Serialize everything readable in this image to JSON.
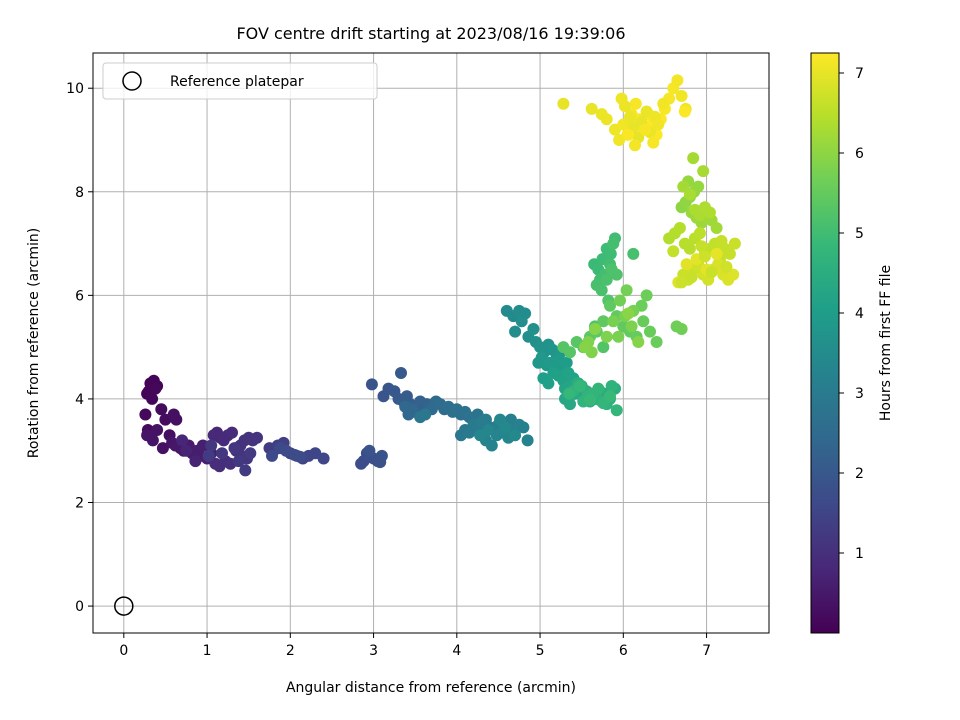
{
  "chart_data": {
    "type": "scatter",
    "title": "FOV centre drift starting at 2023/08/16 19:39:06",
    "xlabel": "Angular distance from reference (arcmin)",
    "ylabel": "Rotation from reference (arcmin)",
    "xlim": [
      -0.37,
      7.75
    ],
    "ylim": [
      -0.52,
      10.68
    ],
    "xticks": [
      0,
      1,
      2,
      3,
      4,
      5,
      6,
      7
    ],
    "yticks": [
      0,
      2,
      4,
      6,
      8,
      10
    ],
    "grid": true,
    "legend": {
      "position": "top-left",
      "entries": [
        "Reference platepar"
      ]
    },
    "reference_point": {
      "x": 0,
      "y": 0
    },
    "colorbar": {
      "label": "Hours from first FF file",
      "range": [
        0,
        7.25
      ],
      "ticks": [
        1,
        2,
        3,
        4,
        5,
        6,
        7
      ],
      "colormap": "viridis",
      "colors": [
        "#440154",
        "#482878",
        "#3e4989",
        "#31688e",
        "#26828e",
        "#1f9e89",
        "#35b779",
        "#6ece58",
        "#b5de2b",
        "#fde725"
      ]
    },
    "series": [
      {
        "x": [
          0.28,
          0.32,
          0.36,
          0.4,
          0.3,
          0.34,
          0.38,
          0.26,
          0.29,
          0.33,
          0.45,
          0.5,
          0.55,
          0.6,
          0.63,
          0.47,
          0.4,
          0.28,
          0.35,
          0.58,
          0.62,
          0.68,
          0.72,
          0.78,
          0.82,
          0.88,
          0.92,
          0.95,
          1.0,
          1.05,
          0.86,
          0.75,
          0.7
        ],
        "y": [
          4.1,
          4.3,
          4.35,
          4.25,
          4.15,
          4.0,
          4.2,
          3.7,
          3.4,
          3.3,
          3.8,
          3.6,
          3.3,
          3.7,
          3.6,
          3.05,
          3.4,
          3.3,
          3.2,
          3.15,
          3.1,
          3.05,
          3.0,
          3.1,
          2.95,
          3.0,
          2.9,
          3.1,
          2.85,
          2.95,
          2.8,
          3.0,
          3.2
        ],
        "t": [
          0.05,
          0.05,
          0.06,
          0.07,
          0.08,
          0.1,
          0.12,
          0.15,
          0.18,
          0.2,
          0.22,
          0.25,
          0.28,
          0.3,
          0.32,
          0.34,
          0.36,
          0.38,
          0.4,
          0.42,
          0.45,
          0.48,
          0.5,
          0.52,
          0.55,
          0.58,
          0.6,
          0.62,
          0.65,
          0.68,
          0.7,
          0.72,
          0.75
        ]
      },
      {
        "x": [
          1.08,
          1.12,
          1.16,
          1.2,
          1.25,
          1.3,
          1.1,
          1.15,
          1.22,
          1.28,
          1.35,
          1.4,
          1.45,
          1.5,
          1.55,
          1.6,
          1.42,
          1.48,
          1.33,
          1.18,
          1.05,
          1.38,
          1.52,
          1.46,
          1.02
        ],
        "y": [
          3.3,
          3.35,
          3.25,
          3.2,
          3.3,
          3.35,
          2.75,
          2.7,
          2.8,
          2.75,
          3.0,
          3.1,
          3.2,
          3.25,
          3.2,
          3.25,
          2.9,
          2.85,
          3.05,
          2.95,
          3.1,
          2.8,
          2.95,
          2.62,
          2.9
        ],
        "t": [
          0.8,
          0.82,
          0.84,
          0.86,
          0.88,
          0.9,
          0.92,
          0.94,
          0.96,
          0.98,
          1.0,
          1.02,
          1.04,
          1.06,
          1.08,
          1.1,
          1.12,
          1.14,
          1.16,
          1.18,
          1.2,
          1.22,
          1.24,
          1.26,
          1.28
        ]
      },
      {
        "x": [
          1.75,
          1.8,
          1.85,
          1.92,
          2.0,
          2.08,
          2.15,
          2.22,
          2.3,
          2.4,
          1.78,
          1.88,
          1.95,
          2.05,
          2.12,
          2.85,
          2.88,
          2.92,
          2.96,
          3.0,
          3.05,
          3.08,
          3.1,
          2.95
        ],
        "y": [
          3.05,
          3.0,
          3.1,
          3.15,
          2.95,
          2.9,
          2.85,
          2.9,
          2.95,
          2.85,
          2.9,
          3.05,
          3.0,
          2.92,
          2.88,
          2.75,
          2.8,
          2.95,
          2.9,
          2.85,
          2.8,
          2.78,
          2.9,
          3.0
        ],
        "t": [
          1.3,
          1.33,
          1.36,
          1.39,
          1.42,
          1.45,
          1.48,
          1.51,
          1.54,
          1.57,
          1.6,
          1.62,
          1.64,
          1.66,
          1.68,
          1.7,
          1.72,
          1.74,
          1.76,
          1.78,
          1.8,
          1.82,
          1.84,
          1.86
        ]
      },
      {
        "x": [
          2.98,
          3.12,
          3.18,
          3.25,
          3.33,
          3.3,
          3.36,
          3.4,
          3.44,
          3.48,
          3.52,
          3.56,
          3.6,
          3.64,
          3.68,
          3.5,
          3.46,
          3.42,
          3.38,
          3.7,
          3.75,
          3.8,
          3.85,
          3.9,
          3.95,
          4.0,
          4.05,
          4.1,
          4.15,
          4.2,
          4.25,
          4.3,
          3.56,
          3.62
        ],
        "y": [
          4.28,
          4.05,
          4.2,
          4.15,
          4.5,
          4.0,
          3.95,
          4.05,
          3.9,
          3.85,
          3.8,
          3.95,
          3.75,
          3.9,
          3.85,
          3.75,
          3.8,
          3.7,
          3.85,
          3.8,
          3.95,
          3.9,
          3.8,
          3.85,
          3.75,
          3.8,
          3.7,
          3.75,
          3.65,
          3.6,
          3.7,
          3.55,
          3.65,
          3.7
        ],
        "t": [
          1.9,
          1.93,
          1.96,
          1.99,
          2.02,
          2.05,
          2.08,
          2.11,
          2.14,
          2.17,
          2.2,
          2.23,
          2.26,
          2.29,
          2.32,
          2.35,
          2.38,
          2.41,
          2.44,
          2.47,
          2.5,
          2.53,
          2.56,
          2.59,
          2.62,
          2.65,
          2.68,
          2.71,
          2.74,
          2.77,
          2.8,
          2.83,
          2.86,
          2.89
        ]
      },
      {
        "x": [
          4.05,
          4.1,
          4.15,
          4.2,
          4.25,
          4.3,
          4.35,
          4.4,
          4.45,
          4.5,
          4.55,
          4.6,
          4.65,
          4.7,
          4.75,
          4.8,
          4.85,
          4.35,
          4.42,
          4.48,
          4.56,
          4.62,
          4.38,
          4.28,
          4.52,
          4.7,
          4.58
        ],
        "y": [
          3.3,
          3.4,
          3.35,
          3.5,
          3.45,
          3.55,
          3.6,
          3.45,
          3.4,
          3.5,
          3.55,
          3.35,
          3.6,
          3.4,
          3.5,
          3.45,
          3.2,
          3.2,
          3.1,
          3.3,
          3.35,
          3.25,
          3.4,
          3.3,
          3.6,
          3.3,
          3.45
        ],
        "t": [
          2.9,
          2.92,
          2.94,
          2.96,
          2.98,
          3.0,
          3.02,
          3.04,
          3.06,
          3.08,
          3.1,
          3.12,
          3.14,
          3.16,
          3.18,
          3.2,
          3.22,
          3.24,
          3.26,
          3.28,
          3.3,
          3.32,
          3.34,
          3.36,
          3.38,
          3.4,
          3.42
        ]
      },
      {
        "x": [
          4.6,
          4.68,
          4.75,
          4.82,
          4.7,
          4.78,
          4.86,
          4.92,
          4.95,
          5.0,
          5.05,
          5.1,
          5.15,
          5.2,
          5.25,
          4.98,
          5.02,
          5.08,
          5.12,
          5.18,
          5.22,
          5.28,
          5.32,
          5.04,
          5.1,
          5.16,
          5.22,
          5.28,
          5.34,
          5.4,
          5.46,
          5.3,
          5.36,
          5.42
        ],
        "y": [
          5.7,
          5.6,
          5.7,
          5.65,
          5.3,
          5.5,
          5.2,
          5.35,
          5.1,
          5.0,
          4.9,
          5.05,
          4.95,
          4.85,
          4.9,
          4.7,
          4.8,
          4.65,
          4.7,
          4.6,
          4.75,
          4.6,
          4.7,
          4.4,
          4.3,
          4.5,
          4.45,
          4.35,
          4.5,
          4.4,
          4.3,
          4.2,
          4.25,
          4.1
        ],
        "t": [
          3.45,
          3.48,
          3.5,
          3.52,
          3.55,
          3.58,
          3.6,
          3.62,
          3.65,
          3.68,
          3.7,
          3.72,
          3.75,
          3.78,
          3.8,
          3.82,
          3.85,
          3.88,
          3.9,
          3.92,
          3.95,
          3.98,
          4.0,
          4.02,
          4.05,
          4.08,
          4.1,
          4.12,
          4.15,
          4.18,
          4.2,
          4.22,
          4.25,
          4.28
        ]
      },
      {
        "x": [
          5.3,
          5.36,
          5.42,
          5.48,
          5.54,
          5.6,
          5.66,
          5.72,
          5.78,
          5.84,
          5.9,
          5.45,
          5.5,
          5.56,
          5.62,
          5.68,
          5.74,
          5.8,
          5.86,
          5.4,
          5.52,
          5.58,
          5.64,
          5.7,
          5.76,
          5.92,
          5.35,
          5.48,
          5.6,
          5.84
        ],
        "y": [
          4.0,
          3.9,
          4.1,
          4.2,
          4.05,
          3.95,
          4.0,
          4.15,
          4.1,
          4.0,
          4.2,
          4.3,
          4.25,
          4.15,
          4.1,
          4.0,
          3.95,
          3.9,
          4.25,
          4.15,
          3.95,
          4.05,
          4.1,
          4.2,
          3.92,
          3.78,
          4.1,
          4.25,
          3.98,
          4.05
        ],
        "t": [
          4.3,
          4.32,
          4.34,
          4.36,
          4.38,
          4.4,
          4.42,
          4.44,
          4.46,
          4.48,
          4.5,
          4.52,
          4.54,
          4.56,
          4.58,
          4.6,
          4.62,
          4.64,
          4.66,
          4.68,
          4.7,
          4.72,
          4.74,
          4.76,
          4.78,
          4.8,
          4.82,
          4.84,
          4.86,
          4.88
        ]
      },
      {
        "x": [
          5.65,
          5.7,
          5.75,
          5.8,
          5.85,
          5.9,
          5.72,
          5.78,
          5.84,
          5.88,
          6.12,
          5.68,
          5.74,
          5.8,
          5.86,
          5.92,
          5.66,
          5.82,
          5.76
        ],
        "y": [
          6.6,
          6.5,
          6.7,
          6.9,
          6.8,
          7.1,
          6.3,
          6.4,
          6.6,
          7.0,
          6.8,
          6.2,
          6.1,
          6.3,
          6.5,
          6.4,
          5.4,
          5.9,
          5.0
        ],
        "t": [
          4.9,
          4.92,
          4.94,
          4.96,
          4.98,
          5.0,
          5.02,
          5.04,
          5.06,
          5.08,
          5.1,
          5.12,
          5.14,
          5.16,
          5.18,
          5.2,
          5.22,
          5.24,
          5.26
        ]
      },
      {
        "x": [
          5.28,
          5.36,
          5.44,
          5.52,
          5.6,
          5.68,
          5.76,
          5.84,
          5.92,
          6.0,
          6.08,
          6.16,
          6.24,
          6.32,
          6.4,
          6.22,
          6.28,
          6.64,
          6.7,
          5.96,
          6.04,
          6.12,
          5.88,
          5.94,
          6.02,
          6.1,
          5.8,
          5.62,
          5.58,
          6.18,
          5.54,
          5.66,
          6.06
        ],
        "y": [
          5.0,
          4.9,
          5.1,
          5.0,
          5.2,
          5.3,
          5.5,
          5.8,
          5.6,
          5.4,
          5.3,
          5.2,
          5.5,
          5.3,
          5.1,
          5.8,
          6.0,
          5.4,
          5.35,
          5.9,
          6.1,
          5.7,
          5.5,
          5.2,
          5.6,
          5.4,
          5.2,
          4.9,
          5.1,
          5.1,
          5.0,
          5.35,
          5.65
        ],
        "t": [
          5.3,
          5.32,
          5.34,
          5.36,
          5.38,
          5.4,
          5.42,
          5.44,
          5.46,
          5.48,
          5.5,
          5.52,
          5.54,
          5.56,
          5.58,
          5.6,
          5.62,
          5.64,
          5.66,
          5.68,
          5.7,
          5.72,
          5.74,
          5.76,
          5.78,
          5.8,
          5.82,
          5.84,
          5.86,
          5.88,
          5.9,
          5.92,
          5.94
        ]
      },
      {
        "x": [
          6.7,
          6.75,
          6.8,
          6.85,
          6.9,
          6.78,
          6.82,
          6.88,
          6.94,
          7.0,
          7.06,
          7.12,
          6.72,
          6.84,
          6.96,
          6.8,
          6.86,
          6.92,
          6.98,
          7.04
        ],
        "y": [
          7.7,
          7.8,
          7.9,
          8.0,
          8.1,
          8.2,
          7.6,
          7.5,
          7.4,
          7.5,
          7.45,
          7.3,
          8.1,
          8.65,
          8.4,
          7.95,
          7.65,
          7.55,
          7.7,
          7.6
        ],
        "t": [
          6.0,
          6.02,
          6.04,
          6.06,
          6.08,
          6.1,
          6.12,
          6.14,
          6.16,
          6.18,
          6.2,
          6.22,
          6.24,
          6.26,
          6.28,
          6.3,
          6.32,
          6.34,
          6.36,
          6.38
        ]
      },
      {
        "x": [
          6.55,
          6.62,
          6.68,
          6.74,
          6.8,
          6.86,
          6.92,
          6.98,
          7.04,
          7.1,
          7.16,
          7.22,
          7.28,
          7.34,
          6.72,
          6.78,
          6.84,
          6.9,
          6.96,
          7.02,
          7.08,
          7.14,
          7.2,
          7.26,
          7.32,
          6.66,
          6.76,
          6.88,
          7.0,
          7.12,
          6.6,
          6.94,
          7.18,
          6.82,
          7.06,
          6.7,
          6.98,
          7.24
        ],
        "y": [
          7.1,
          7.2,
          7.3,
          7.0,
          6.9,
          7.1,
          7.2,
          6.8,
          6.9,
          7.0,
          6.7,
          6.9,
          6.8,
          7.0,
          6.4,
          6.3,
          6.5,
          6.6,
          6.4,
          6.3,
          6.5,
          6.6,
          6.4,
          6.3,
          6.4,
          6.25,
          6.6,
          6.7,
          6.5,
          6.8,
          6.85,
          6.95,
          7.05,
          6.35,
          6.45,
          6.25,
          6.75,
          6.55
        ],
        "t": [
          6.4,
          6.42,
          6.44,
          6.46,
          6.48,
          6.5,
          6.52,
          6.54,
          6.56,
          6.58,
          6.6,
          6.62,
          6.64,
          6.66,
          6.68,
          6.7,
          6.72,
          6.74,
          6.76,
          6.78,
          6.8,
          6.82,
          6.84,
          6.86,
          6.88,
          6.9,
          6.92,
          6.94,
          6.96,
          6.98,
          6.6,
          6.62,
          6.64,
          6.66,
          6.68,
          6.7,
          6.72,
          6.74
        ]
      },
      {
        "x": [
          5.28,
          5.62,
          5.74,
          5.8,
          5.9,
          5.95,
          6.0,
          6.05,
          6.1,
          6.15,
          6.2,
          6.25,
          6.3,
          6.35,
          6.4,
          6.45,
          6.5,
          6.55,
          6.6,
          6.65,
          6.7,
          6.75,
          5.98,
          6.02,
          6.08,
          6.12,
          6.18,
          6.22,
          6.28,
          6.32,
          6.38,
          6.42,
          6.48,
          6.14,
          6.26,
          6.36,
          6.06,
          6.74
        ],
        "y": [
          9.7,
          9.6,
          9.5,
          9.4,
          9.2,
          9.0,
          9.3,
          9.1,
          9.5,
          9.7,
          9.4,
          9.2,
          9.5,
          9.3,
          9.1,
          9.4,
          9.6,
          9.8,
          10.0,
          10.15,
          9.85,
          9.6,
          9.8,
          9.65,
          9.45,
          9.25,
          9.05,
          9.35,
          9.55,
          9.15,
          9.45,
          9.3,
          9.7,
          8.9,
          9.2,
          8.95,
          9.1,
          9.55
        ],
        "t": [
          7.0,
          7.02,
          7.04,
          7.06,
          7.08,
          7.1,
          7.12,
          7.14,
          7.16,
          7.18,
          7.2,
          7.22,
          7.24,
          7.25,
          7.24,
          7.22,
          7.2,
          7.18,
          7.16,
          7.14,
          7.12,
          7.1,
          7.08,
          7.06,
          7.04,
          7.02,
          7.0,
          7.02,
          7.04,
          7.06,
          7.08,
          7.1,
          7.12,
          7.14,
          7.16,
          7.18,
          7.2,
          7.22
        ]
      }
    ]
  }
}
